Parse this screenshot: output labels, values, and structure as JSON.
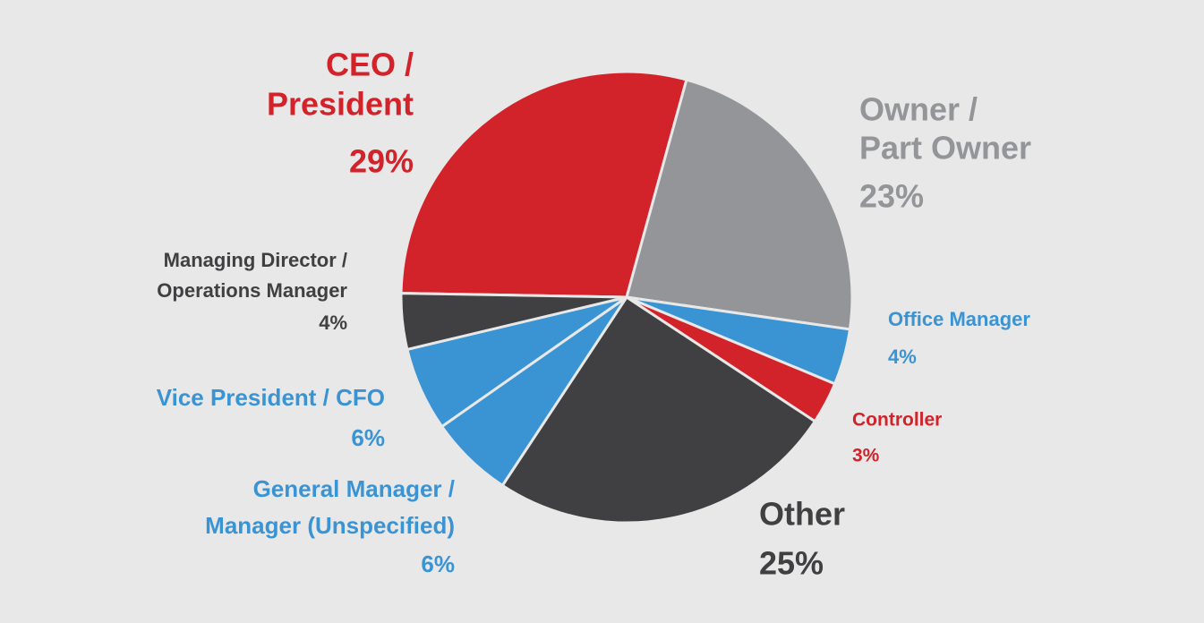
{
  "chart_data": {
    "type": "pie",
    "categories": [
      [
        "CEO /",
        "President"
      ],
      [
        "Owner /",
        "Part Owner"
      ],
      [
        "Office Manager"
      ],
      [
        "Controller"
      ],
      [
        "Other"
      ],
      [
        "General Manager /",
        "Manager (Unspecified)"
      ],
      [
        "Vice President / CFO"
      ],
      [
        "Managing Director /",
        "Operations Manager"
      ]
    ],
    "values": [
      29,
      23,
      4,
      3,
      25,
      6,
      6,
      4
    ],
    "value_labels": [
      "29%",
      "23%",
      "4%",
      "3%",
      "25%",
      "6%",
      "6%",
      "4%"
    ],
    "colors": [
      "#d2232a",
      "#939598",
      "#3a94d4",
      "#d2232a",
      "#404042",
      "#3a94d4",
      "#3a94d4",
      "#404042"
    ]
  }
}
